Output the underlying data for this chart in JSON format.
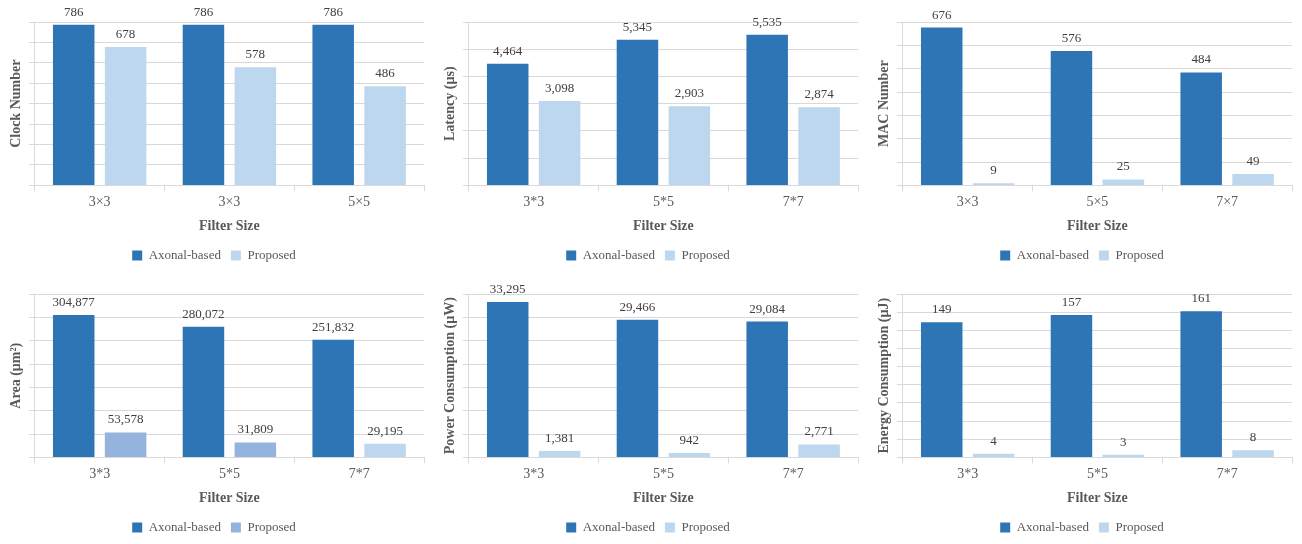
{
  "chart_data": [
    {
      "type": "bar",
      "ylabel": "Clock Number",
      "xlabel": "Filter Size",
      "categories": [
        "3×3",
        "3×3",
        "5×5"
      ],
      "series": [
        {
          "name": "Axonal-based",
          "color": "#2e75b6",
          "values": [
            786,
            786,
            786
          ],
          "value_labels": [
            "786",
            "786",
            "786"
          ]
        },
        {
          "name": "Proposed",
          "color": "#bdd7ee",
          "values": [
            678,
            578,
            486
          ],
          "value_labels": [
            "678",
            "578",
            "486"
          ]
        }
      ],
      "grid": "y",
      "tick_labels": "x",
      "legend": "bottom"
    },
    {
      "type": "bar",
      "ylabel": "Latency (µs)",
      "xlabel": "Filter Size",
      "categories": [
        "3*3",
        "5*5",
        "7*7"
      ],
      "series": [
        {
          "name": "Axonal-based",
          "color": "#2e75b6",
          "values": [
            4464,
            5345,
            5535
          ],
          "value_labels": [
            "4,464",
            "5,345",
            "5,535"
          ]
        },
        {
          "name": "Proposed",
          "color": "#bdd7ee",
          "values": [
            3098,
            2903,
            2874
          ],
          "value_labels": [
            "3,098",
            "2,903",
            "2,874"
          ]
        }
      ],
      "grid": "y",
      "tick_labels": "x",
      "legend": "bottom"
    },
    {
      "type": "bar",
      "ylabel": "MAC Number",
      "xlabel": "Filter Size",
      "categories": [
        "3×3",
        "5×5",
        "7×7"
      ],
      "series": [
        {
          "name": "Axonal-based",
          "color": "#2e75b6",
          "values": [
            676,
            576,
            484
          ],
          "value_labels": [
            "676",
            "576",
            "484"
          ]
        },
        {
          "name": "Proposed",
          "color": "#bdd7ee",
          "values": [
            9,
            25,
            49
          ],
          "value_labels": [
            "9",
            "25",
            "49"
          ]
        }
      ],
      "grid": "y",
      "tick_labels": "x",
      "legend": "bottom"
    },
    {
      "type": "bar",
      "ylabel": "Area (μm²)",
      "xlabel": "Filter Size",
      "categories": [
        "3*3",
        "5*5",
        "7*7"
      ],
      "series": [
        {
          "name": "Axonal-based",
          "color": "#2e75b6",
          "values": [
            304877,
            280072,
            251832
          ],
          "value_labels": [
            "304,877",
            "280,072",
            "251,832"
          ]
        },
        {
          "name": "Proposed",
          "color": "#94b4de",
          "colors": [
            "#94b4de",
            "#94b4de",
            "#bdd7ee"
          ],
          "values": [
            53578,
            31809,
            29195
          ],
          "value_labels": [
            "53,578",
            "31,809",
            "29,195"
          ]
        }
      ],
      "grid": "y",
      "tick_labels": "x",
      "legend": "bottom"
    },
    {
      "type": "bar",
      "ylabel": "Power Consumption (µW)",
      "xlabel": "Filter Size",
      "categories": [
        "3*3",
        "5*5",
        "7*7"
      ],
      "series": [
        {
          "name": "Axonal-based",
          "color": "#2e75b6",
          "values": [
            33295,
            29466,
            29084
          ],
          "value_labels": [
            "33,295",
            "29,466",
            "29,084"
          ]
        },
        {
          "name": "Proposed",
          "color": "#bdd7ee",
          "values": [
            1381,
            942,
            2771
          ],
          "value_labels": [
            "1,381",
            "942",
            "2,771"
          ]
        }
      ],
      "grid": "y",
      "tick_labels": "x",
      "legend": "bottom"
    },
    {
      "type": "bar",
      "ylabel": "Energy Consumption (µJ)",
      "xlabel": "Filter Size",
      "categories": [
        "3*3",
        "5*5",
        "7*7"
      ],
      "series": [
        {
          "name": "Axonal-based",
          "color": "#2e75b6",
          "values": [
            149,
            157,
            161
          ],
          "value_labels": [
            "149",
            "157",
            "161"
          ]
        },
        {
          "name": "Proposed",
          "color": "#bdd7ee",
          "values": [
            4,
            3,
            8
          ],
          "value_labels": [
            "4",
            "3",
            "8"
          ]
        }
      ],
      "grid": "y",
      "tick_labels": "x",
      "legend": "bottom"
    }
  ]
}
